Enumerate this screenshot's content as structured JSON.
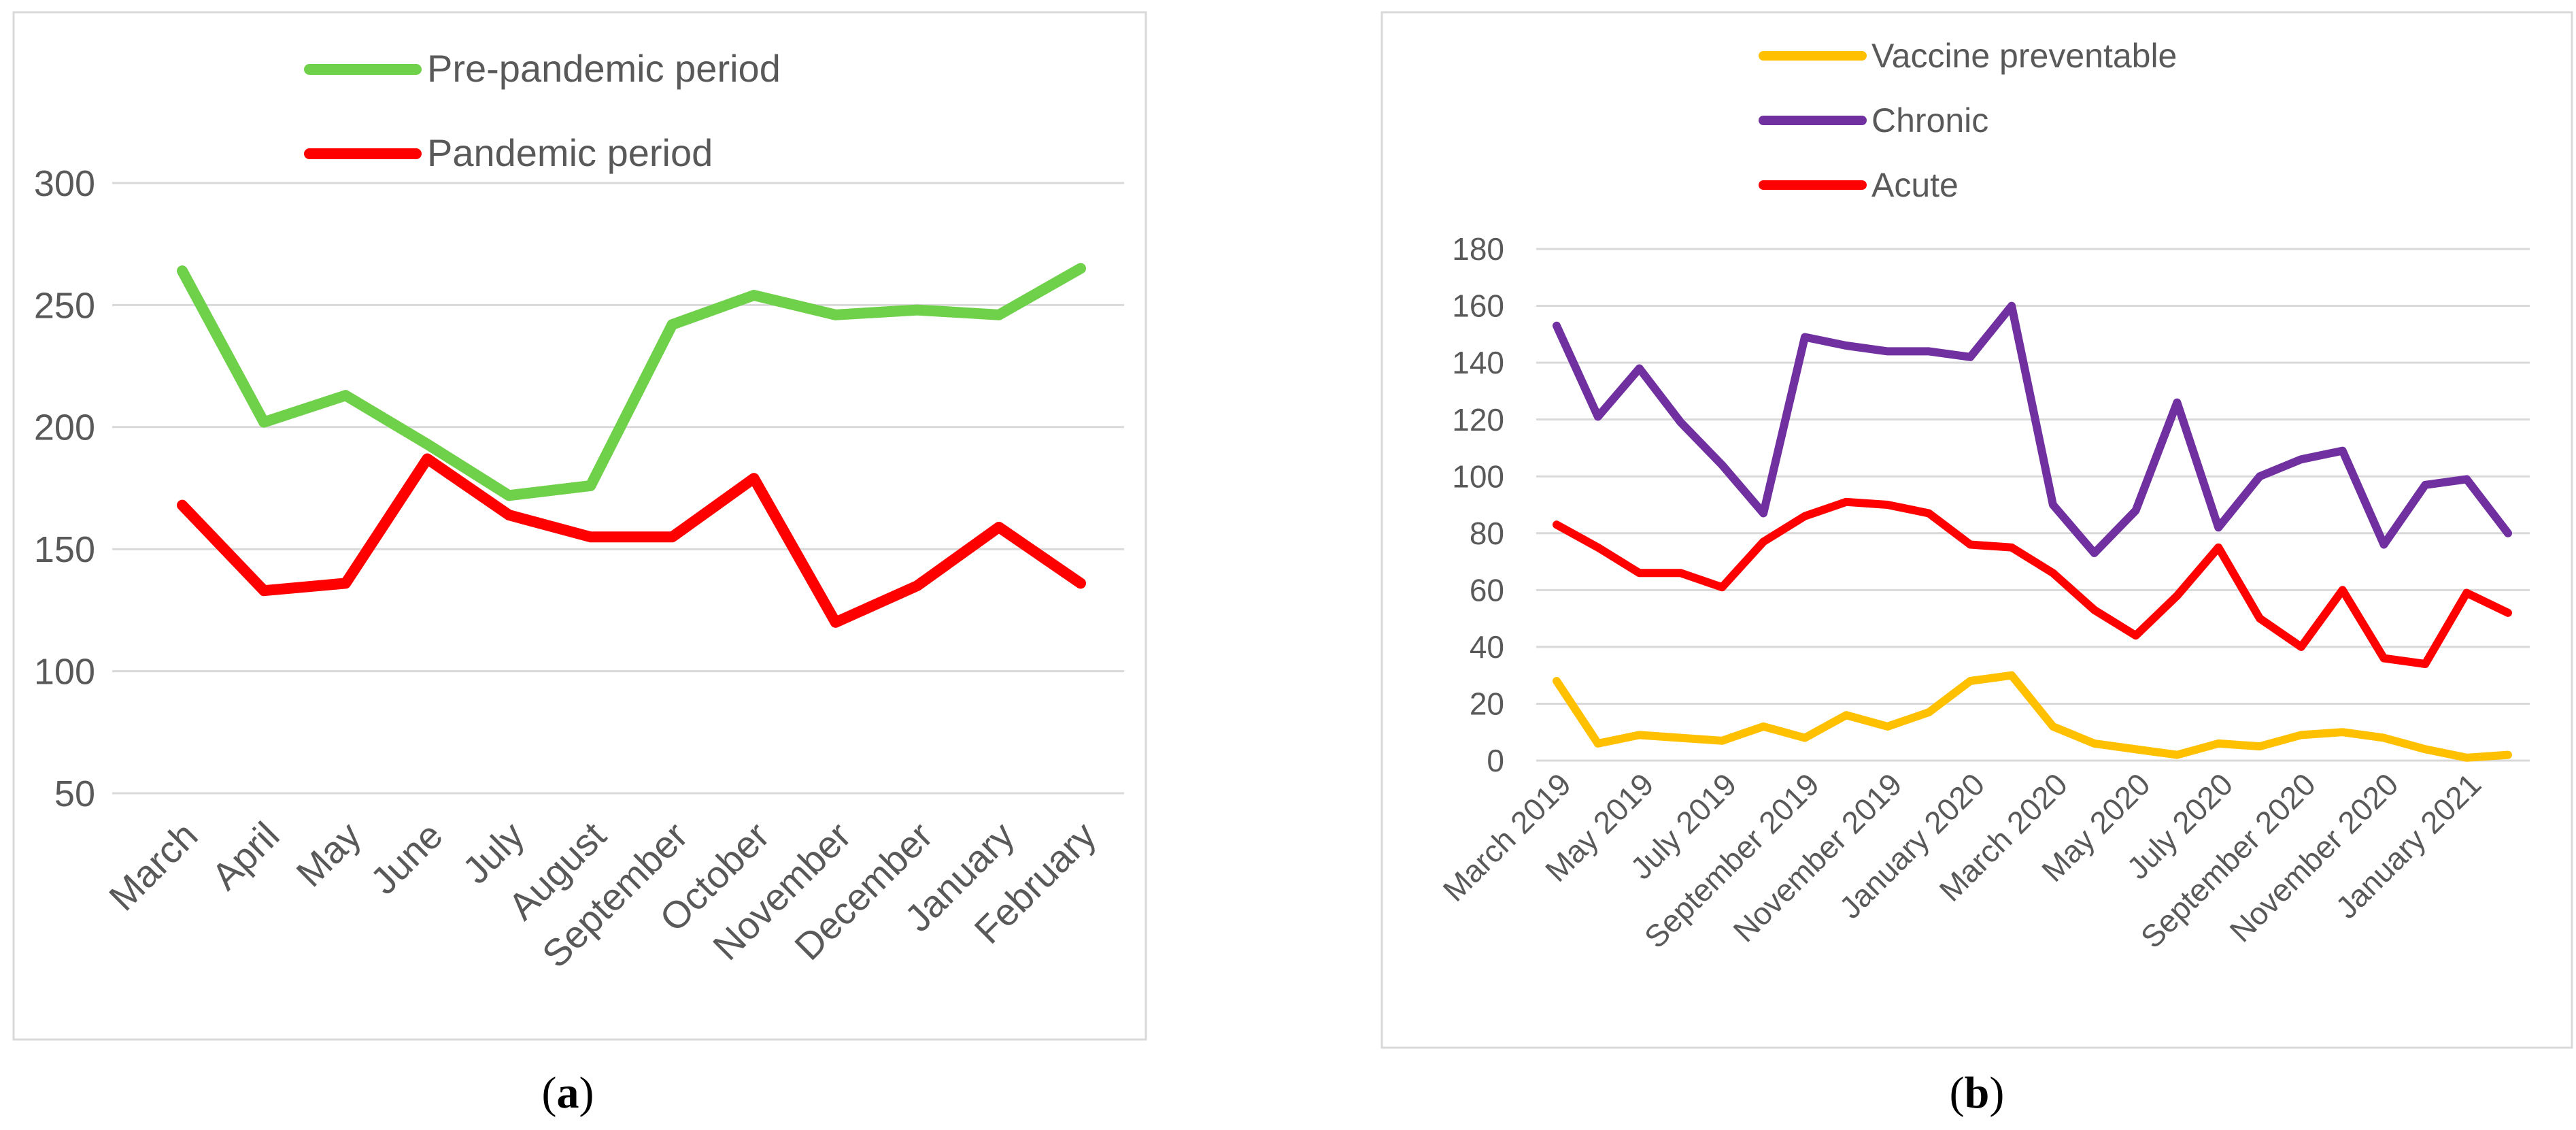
{
  "chart_data": [
    {
      "type": "line",
      "panel_label": "(a)",
      "caption_letter": "a",
      "categories": [
        "March",
        "April",
        "May",
        "June",
        "July",
        "August",
        "September",
        "October",
        "November",
        "December",
        "January",
        "February"
      ],
      "series": [
        {
          "name": "Pre-pandemic period",
          "color": "#6fd04a",
          "values": [
            264,
            202,
            213,
            193,
            172,
            176,
            242,
            254,
            246,
            248,
            246,
            265
          ]
        },
        {
          "name": "Pandemic period",
          "color": "#ff0000",
          "values": [
            168,
            133,
            136,
            187,
            164,
            155,
            155,
            179,
            120,
            135,
            159,
            136
          ]
        }
      ],
      "y_ticks": [
        50,
        100,
        150,
        200,
        250,
        300
      ],
      "ylim": [
        50,
        300
      ],
      "title": "",
      "xlabel": "",
      "ylabel": "",
      "legend_position": "top",
      "grid": true
    },
    {
      "type": "line",
      "panel_label": "(b)",
      "caption_letter": "b",
      "categories": [
        "March 2019",
        "April 2019",
        "May 2019",
        "June 2019",
        "July 2019",
        "August 2019",
        "September 2019",
        "October 2019",
        "November 2019",
        "December 2019",
        "January 2020",
        "February 2020",
        "March 2020",
        "April 2020",
        "May 2020",
        "June 2020",
        "July 2020",
        "August 2020",
        "September 2020",
        "October 2020",
        "November 2020",
        "December 2020",
        "January 2021",
        "February 2021"
      ],
      "tick_labels_shown": [
        "March 2019",
        "May 2019",
        "July 2019",
        "September 2019",
        "November 2019",
        "January 2020",
        "March 2020",
        "May 2020",
        "July 2020",
        "September 2020",
        "November 2020",
        "January 2021"
      ],
      "series": [
        {
          "name": "Vaccine preventable",
          "color": "#ffc000",
          "values": [
            28,
            6,
            9,
            8,
            7,
            12,
            8,
            16,
            12,
            17,
            28,
            30,
            12,
            6,
            4,
            2,
            6,
            5,
            9,
            10,
            8,
            4,
            1,
            2
          ]
        },
        {
          "name": "Chronic",
          "color": "#7030a0",
          "values": [
            153,
            121,
            138,
            119,
            104,
            87,
            149,
            146,
            144,
            144,
            142,
            160,
            90,
            73,
            88,
            126,
            82,
            100,
            106,
            109,
            76,
            97,
            99,
            80
          ]
        },
        {
          "name": "Acute",
          "color": "#ff0000",
          "values": [
            83,
            75,
            66,
            66,
            61,
            77,
            86,
            91,
            90,
            87,
            76,
            75,
            66,
            53,
            44,
            58,
            75,
            50,
            40,
            60,
            36,
            34,
            59,
            52
          ]
        }
      ],
      "y_ticks": [
        0,
        20,
        40,
        60,
        80,
        100,
        120,
        140,
        160,
        180
      ],
      "ylim": [
        0,
        180
      ],
      "title": "",
      "xlabel": "",
      "ylabel": "",
      "legend_position": "top-left",
      "grid": true
    }
  ]
}
